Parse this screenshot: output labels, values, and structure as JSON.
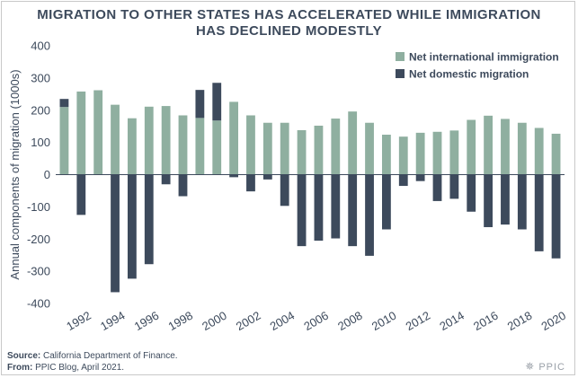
{
  "chart_data": {
    "type": "bar",
    "stacking": "diverging",
    "title": [
      "MIGRATION TO OTHER STATES HAS ACCELERATED WHILE IMMIGRATION",
      "HAS DECLINED MODESTLY"
    ],
    "ylabel": "Annual components of migration (1000s)",
    "xlabel": "",
    "ylim": [
      -400,
      400
    ],
    "yticks": [
      -400,
      -300,
      -200,
      -100,
      0,
      100,
      200,
      300,
      400
    ],
    "grid": false,
    "legend_position": "top-right",
    "categories": [
      1991,
      1992,
      1993,
      1994,
      1995,
      1996,
      1997,
      1998,
      1999,
      2000,
      2001,
      2002,
      2003,
      2004,
      2005,
      2006,
      2007,
      2008,
      2009,
      2010,
      2011,
      2012,
      2013,
      2014,
      2015,
      2016,
      2017,
      2018,
      2019,
      2020
    ],
    "xtick_labels": [
      "1992",
      "1994",
      "1996",
      "1998",
      "2000",
      "2002",
      "2004",
      "2006",
      "2008",
      "2010",
      "2012",
      "2014",
      "2016",
      "2018",
      "2020"
    ],
    "series": [
      {
        "name": "Net international immigration",
        "color": "#8fafa0",
        "values": [
          210,
          258,
          262,
          217,
          175,
          211,
          213,
          184,
          176,
          168,
          226,
          184,
          161,
          161,
          138,
          152,
          174,
          196,
          161,
          124,
          118,
          130,
          133,
          137,
          170,
          183,
          173,
          161,
          145,
          127
        ]
      },
      {
        "name": "Net domestic migration",
        "color": "#3d4a5c",
        "values": [
          25,
          -125,
          0,
          -365,
          -323,
          -278,
          -30,
          -67,
          87,
          117,
          -8,
          -52,
          -15,
          -97,
          -222,
          -205,
          -198,
          -222,
          -252,
          -170,
          -35,
          -20,
          -82,
          -75,
          -115,
          -163,
          -155,
          -170,
          -238,
          -260
        ]
      }
    ]
  },
  "footer": {
    "source_label": "Source:",
    "source_text": "California Department of Finance.",
    "from_label": "From:",
    "from_text": "PPIC Blog, April 2021."
  },
  "brand": {
    "text": "PPIC",
    "icon": "ppic-sunburst-icon"
  }
}
